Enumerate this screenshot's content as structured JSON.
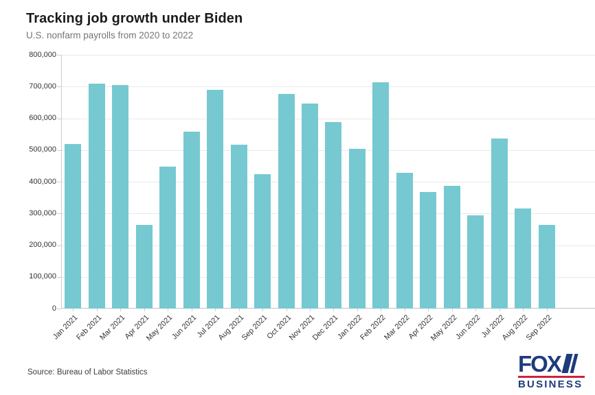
{
  "header": {
    "title": "Tracking job growth under Biden",
    "subtitle": "U.S. nonfarm payrolls from 2020 to 2022"
  },
  "chart_data": {
    "type": "bar",
    "title": "Tracking job growth under Biden",
    "subtitle": "U.S. nonfarm payrolls from 2020 to 2022",
    "categories": [
      "Jan 2021",
      "Feb 2021",
      "Mar 2021",
      "Apr 2021",
      "May 2021",
      "Jun 2021",
      "Jul 2021",
      "Aug 2021",
      "Sep 2021",
      "Oct 2021",
      "Nov 2021",
      "Dec 2021",
      "Jan 2022",
      "Feb 2022",
      "Mar 2022",
      "Apr 2022",
      "May 2022",
      "Jun 2022",
      "Jul 2022",
      "Aug 2022",
      "Sep 2022"
    ],
    "values": [
      520000,
      710000,
      704000,
      263000,
      447000,
      557000,
      689000,
      517000,
      424000,
      677000,
      647000,
      588000,
      504000,
      714000,
      428000,
      368000,
      386000,
      293000,
      537000,
      315000,
      263000
    ],
    "xlabel": "",
    "ylabel": "",
    "ylim": [
      0,
      800000
    ],
    "ytick_step": 100000,
    "ytick_labels": [
      "0",
      "100,000",
      "200,000",
      "300,000",
      "400,000",
      "500,000",
      "600,000",
      "700,000",
      "800,000"
    ],
    "grid": true,
    "legend": false,
    "bar_color": "#76c9d1"
  },
  "footer": {
    "source": "Source: Bureau of Labor Statistics",
    "logo": {
      "line1": "FOX",
      "line2": "BUSINESS"
    }
  },
  "colors": {
    "bar": "#76c9d1",
    "grid": "#e9e9e9",
    "axis": "#cccccc",
    "title": "#1a1a1a",
    "subtitle": "#757575",
    "tick_label": "#333333",
    "logo_navy": "#1f3b7c",
    "logo_red": "#c9253a"
  }
}
